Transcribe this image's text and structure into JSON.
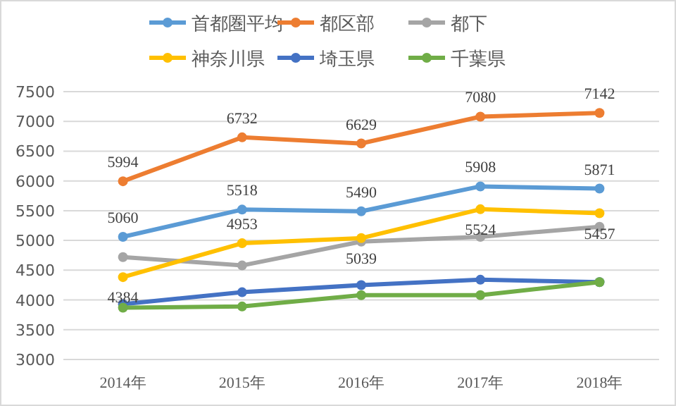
{
  "chart_data": {
    "type": "line",
    "categories": [
      "2014年",
      "2015年",
      "2016年",
      "2017年",
      "2018年"
    ],
    "series": [
      {
        "name": "首都圏平均",
        "color": "#5b9bd5",
        "values": [
          5060,
          5518,
          5490,
          5908,
          5871
        ],
        "value_labels": [
          "5060",
          "5518",
          "5490",
          "5908",
          "5871"
        ]
      },
      {
        "name": "都区部",
        "color": "#ed7d31",
        "values": [
          5994,
          6732,
          6629,
          7080,
          7142
        ],
        "value_labels": [
          "5994",
          "6732",
          "6629",
          "7080",
          "7142"
        ]
      },
      {
        "name": "都下",
        "color": "#a5a5a5",
        "values": [
          4720,
          4580,
          4980,
          5060,
          5230
        ]
      },
      {
        "name": "神奈川県",
        "color": "#ffc000",
        "values": [
          4384,
          4953,
          5039,
          5524,
          5457
        ],
        "value_labels": [
          "4384",
          "4953",
          "5039",
          "5524",
          "5457"
        ]
      },
      {
        "name": "埼玉県",
        "color": "#4472c4",
        "values": [
          3930,
          4130,
          4250,
          4340,
          4300
        ]
      },
      {
        "name": "千葉県",
        "color": "#70ad47",
        "values": [
          3870,
          3890,
          4080,
          4080,
          4300
        ]
      }
    ],
    "ylim": [
      3000,
      7500
    ],
    "yticks": [
      3000,
      3500,
      4000,
      4500,
      5000,
      5500,
      6000,
      6500,
      7000,
      7500
    ],
    "grid": "y",
    "legend": "top",
    "marker": "circle",
    "line_style": "solid"
  }
}
